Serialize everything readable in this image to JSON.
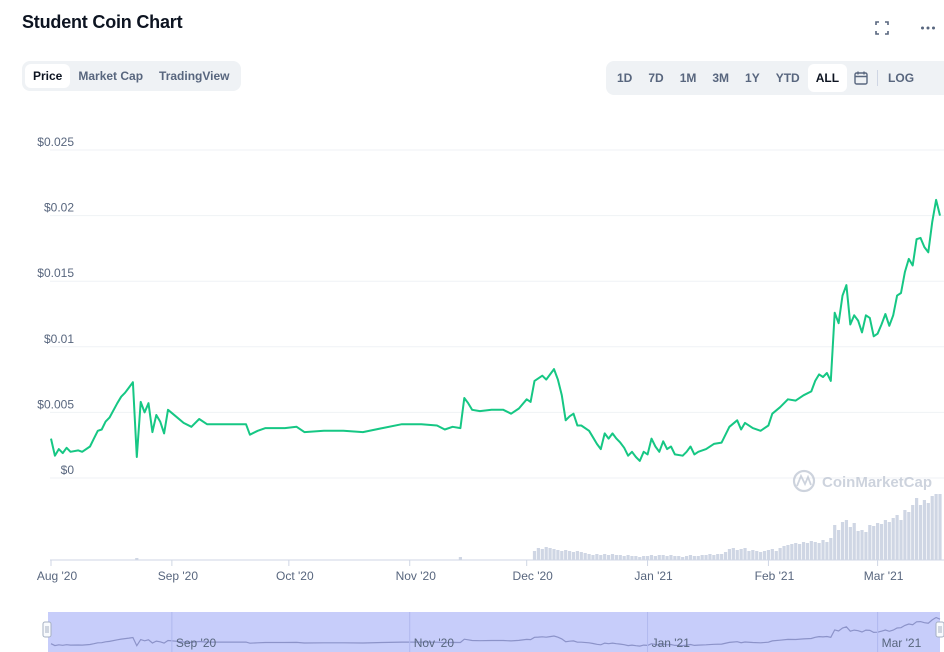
{
  "title": "Student Coin Chart",
  "icons": {
    "fullscreen": "fullscreen-icon",
    "more": "more-icon",
    "calendar": "calendar-icon"
  },
  "tabs": [
    {
      "label": "Price",
      "active": true
    },
    {
      "label": "Market Cap",
      "active": false
    },
    {
      "label": "TradingView",
      "active": false
    }
  ],
  "ranges": [
    {
      "label": "1D",
      "active": false
    },
    {
      "label": "7D",
      "active": false
    },
    {
      "label": "1M",
      "active": false
    },
    {
      "label": "3M",
      "active": false
    },
    {
      "label": "1Y",
      "active": false
    },
    {
      "label": "YTD",
      "active": false
    },
    {
      "label": "ALL",
      "active": true
    }
  ],
  "log_label": "LOG",
  "watermark": "CoinMarketCap",
  "colors": {
    "line": "#16c784",
    "grid": "#eff2f5",
    "volume": "#cfd6e4",
    "navigator": "#c7cdfa",
    "navigator_line": "#8c93c9",
    "axis_text": "#58667e"
  },
  "chart_data": {
    "type": "line",
    "title": "",
    "xlabel": "",
    "ylabel": "",
    "ylim": [
      0,
      0.025
    ],
    "y_ticks": [
      {
        "value": 0,
        "label": "$0"
      },
      {
        "value": 0.005,
        "label": "$0.005"
      },
      {
        "value": 0.01,
        "label": "$0.01"
      },
      {
        "value": 0.015,
        "label": "$0.015"
      },
      {
        "value": 0.02,
        "label": "$0.02"
      },
      {
        "value": 0.025,
        "label": "$0.025"
      }
    ],
    "x_ticks": [
      {
        "date": "2020-08-01",
        "label": "Aug '20"
      },
      {
        "date": "2020-09-01",
        "label": "Sep '20"
      },
      {
        "date": "2020-10-01",
        "label": "Oct '20"
      },
      {
        "date": "2020-11-01",
        "label": "Nov '20"
      },
      {
        "date": "2020-12-01",
        "label": "Dec '20"
      },
      {
        "date": "2021-01-01",
        "label": "Jan '21"
      },
      {
        "date": "2021-02-01",
        "label": "Feb '21"
      },
      {
        "date": "2021-03-01",
        "label": "Mar '21"
      }
    ],
    "navigator_ticks": [
      {
        "date": "2020-09-01",
        "label": "Sep '20"
      },
      {
        "date": "2020-11-01",
        "label": "Nov '20"
      },
      {
        "date": "2021-01-01",
        "label": "Jan '21"
      },
      {
        "date": "2021-03-01",
        "label": "Mar '21"
      }
    ],
    "grid": true,
    "series": [
      {
        "points": [
          [
            "2020-08-01",
            0.003
          ],
          [
            "2020-08-02",
            0.0017
          ],
          [
            "2020-08-03",
            0.0022
          ],
          [
            "2020-08-04",
            0.0019
          ],
          [
            "2020-08-05",
            0.0023
          ],
          [
            "2020-08-06",
            0.002
          ],
          [
            "2020-08-08",
            0.0021
          ],
          [
            "2020-08-09",
            0.002
          ],
          [
            "2020-08-11",
            0.0024
          ],
          [
            "2020-08-12",
            0.003
          ],
          [
            "2020-08-13",
            0.0036
          ],
          [
            "2020-08-14",
            0.0037
          ],
          [
            "2020-08-15",
            0.0043
          ],
          [
            "2020-08-16",
            0.0046
          ],
          [
            "2020-08-18",
            0.0057
          ],
          [
            "2020-08-19",
            0.0062
          ],
          [
            "2020-08-20",
            0.0065
          ],
          [
            "2020-08-21",
            0.0069
          ],
          [
            "2020-08-22",
            0.0073
          ],
          [
            "2020-08-23",
            0.0016
          ],
          [
            "2020-08-24",
            0.0058
          ],
          [
            "2020-08-25",
            0.005
          ],
          [
            "2020-08-26",
            0.0057
          ],
          [
            "2020-08-27",
            0.0035
          ],
          [
            "2020-08-28",
            0.0048
          ],
          [
            "2020-08-29",
            0.0043
          ],
          [
            "2020-08-30",
            0.0034
          ],
          [
            "2020-08-31",
            0.0052
          ],
          [
            "2020-09-02",
            0.0047
          ],
          [
            "2020-09-04",
            0.0042
          ],
          [
            "2020-09-06",
            0.0039
          ],
          [
            "2020-09-08",
            0.0045
          ],
          [
            "2020-09-10",
            0.0041
          ],
          [
            "2020-09-20",
            0.0041
          ],
          [
            "2020-09-21",
            0.0033
          ],
          [
            "2020-09-23",
            0.0036
          ],
          [
            "2020-09-25",
            0.0038
          ],
          [
            "2020-09-30",
            0.0038
          ],
          [
            "2020-10-03",
            0.0039
          ],
          [
            "2020-10-05",
            0.0035
          ],
          [
            "2020-10-10",
            0.0036
          ],
          [
            "2020-10-15",
            0.0036
          ],
          [
            "2020-10-20",
            0.0035
          ],
          [
            "2020-10-25",
            0.0038
          ],
          [
            "2020-10-30",
            0.0041
          ],
          [
            "2020-11-04",
            0.0041
          ],
          [
            "2020-11-08",
            0.004
          ],
          [
            "2020-11-10",
            0.0037
          ],
          [
            "2020-11-12",
            0.0039
          ],
          [
            "2020-11-14",
            0.0038
          ],
          [
            "2020-11-15",
            0.0061
          ],
          [
            "2020-11-16",
            0.0057
          ],
          [
            "2020-11-17",
            0.0052
          ],
          [
            "2020-11-19",
            0.0051
          ],
          [
            "2020-11-22",
            0.0052
          ],
          [
            "2020-11-25",
            0.0052
          ],
          [
            "2020-11-27",
            0.0049
          ],
          [
            "2020-11-29",
            0.0053
          ],
          [
            "2020-12-01",
            0.006
          ],
          [
            "2020-12-02",
            0.0058
          ],
          [
            "2020-12-03",
            0.0074
          ],
          [
            "2020-12-04",
            0.0076
          ],
          [
            "2020-12-05",
            0.0078
          ],
          [
            "2020-12-06",
            0.0075
          ],
          [
            "2020-12-07",
            0.0079
          ],
          [
            "2020-12-08",
            0.0083
          ],
          [
            "2020-12-09",
            0.0075
          ],
          [
            "2020-12-10",
            0.0063
          ],
          [
            "2020-12-11",
            0.0044
          ],
          [
            "2020-12-12",
            0.0047
          ],
          [
            "2020-12-13",
            0.0049
          ],
          [
            "2020-12-14",
            0.004
          ],
          [
            "2020-12-15",
            0.004
          ],
          [
            "2020-12-17",
            0.0036
          ],
          [
            "2020-12-18",
            0.0031
          ],
          [
            "2020-12-19",
            0.0026
          ],
          [
            "2020-12-20",
            0.0022
          ],
          [
            "2020-12-21",
            0.0034
          ],
          [
            "2020-12-22",
            0.003
          ],
          [
            "2020-12-23",
            0.0034
          ],
          [
            "2020-12-24",
            0.003
          ],
          [
            "2020-12-25",
            0.0027
          ],
          [
            "2020-12-26",
            0.0023
          ],
          [
            "2020-12-27",
            0.0017
          ],
          [
            "2020-12-28",
            0.002
          ],
          [
            "2020-12-29",
            0.0016
          ],
          [
            "2020-12-30",
            0.0013
          ],
          [
            "2020-12-31",
            0.002
          ],
          [
            "2021-01-01",
            0.0018
          ],
          [
            "2021-01-02",
            0.003
          ],
          [
            "2021-01-03",
            0.0024
          ],
          [
            "2021-01-04",
            0.002
          ],
          [
            "2021-01-05",
            0.0028
          ],
          [
            "2021-01-06",
            0.0022
          ],
          [
            "2021-01-07",
            0.0024
          ],
          [
            "2021-01-08",
            0.0018
          ],
          [
            "2021-01-10",
            0.0017
          ],
          [
            "2021-01-11",
            0.002
          ],
          [
            "2021-01-12",
            0.0024
          ],
          [
            "2021-01-13",
            0.0018
          ],
          [
            "2021-01-14",
            0.002
          ],
          [
            "2021-01-16",
            0.0022
          ],
          [
            "2021-01-18",
            0.0026
          ],
          [
            "2021-01-20",
            0.0027
          ],
          [
            "2021-01-22",
            0.0039
          ],
          [
            "2021-01-24",
            0.0044
          ],
          [
            "2021-01-25",
            0.0037
          ],
          [
            "2021-01-26",
            0.0042
          ],
          [
            "2021-01-28",
            0.0038
          ],
          [
            "2021-01-30",
            0.0036
          ],
          [
            "2021-02-01",
            0.004
          ],
          [
            "2021-02-02",
            0.0049
          ],
          [
            "2021-02-04",
            0.0054
          ],
          [
            "2021-02-06",
            0.006
          ],
          [
            "2021-02-08",
            0.0059
          ],
          [
            "2021-02-10",
            0.0063
          ],
          [
            "2021-02-12",
            0.0066
          ],
          [
            "2021-02-13",
            0.0074
          ],
          [
            "2021-02-14",
            0.0079
          ],
          [
            "2021-02-15",
            0.0077
          ],
          [
            "2021-02-16",
            0.008
          ],
          [
            "2021-02-17",
            0.0074
          ],
          [
            "2021-02-18",
            0.0126
          ],
          [
            "2021-02-19",
            0.0118
          ],
          [
            "2021-02-20",
            0.0139
          ],
          [
            "2021-02-21",
            0.0147
          ],
          [
            "2021-02-22",
            0.0117
          ],
          [
            "2021-02-23",
            0.0124
          ],
          [
            "2021-02-24",
            0.012
          ],
          [
            "2021-02-25",
            0.0111
          ],
          [
            "2021-02-26",
            0.0124
          ],
          [
            "2021-02-27",
            0.0122
          ],
          [
            "2021-02-28",
            0.0108
          ],
          [
            "2021-03-01",
            0.011
          ],
          [
            "2021-03-02",
            0.0117
          ],
          [
            "2021-03-03",
            0.0125
          ],
          [
            "2021-03-04",
            0.0116
          ],
          [
            "2021-03-05",
            0.0124
          ],
          [
            "2021-03-06",
            0.0139
          ],
          [
            "2021-03-07",
            0.0141
          ],
          [
            "2021-03-08",
            0.0157
          ],
          [
            "2021-03-09",
            0.0167
          ],
          [
            "2021-03-10",
            0.0162
          ],
          [
            "2021-03-11",
            0.0182
          ],
          [
            "2021-03-12",
            0.0183
          ],
          [
            "2021-03-13",
            0.0176
          ],
          [
            "2021-03-14",
            0.0172
          ],
          [
            "2021-03-15",
            0.0195
          ],
          [
            "2021-03-16",
            0.0212
          ],
          [
            "2021-03-17",
            0.02
          ]
        ]
      }
    ],
    "volume": [
      [
        "2020-08-23",
        0.02
      ],
      [
        "2020-11-14",
        0.03
      ],
      [
        "2020-12-03",
        0.09
      ],
      [
        "2020-12-04",
        0.12
      ],
      [
        "2020-12-05",
        0.11
      ],
      [
        "2020-12-06",
        0.13
      ],
      [
        "2020-12-07",
        0.12
      ],
      [
        "2020-12-08",
        0.11
      ],
      [
        "2020-12-09",
        0.1
      ],
      [
        "2020-12-10",
        0.09
      ],
      [
        "2020-12-11",
        0.1
      ],
      [
        "2020-12-12",
        0.09
      ],
      [
        "2020-12-13",
        0.08
      ],
      [
        "2020-12-14",
        0.09
      ],
      [
        "2020-12-15",
        0.08
      ],
      [
        "2020-12-16",
        0.07
      ],
      [
        "2020-12-17",
        0.06
      ],
      [
        "2020-12-18",
        0.05
      ],
      [
        "2020-12-19",
        0.06
      ],
      [
        "2020-12-20",
        0.05
      ],
      [
        "2020-12-21",
        0.06
      ],
      [
        "2020-12-22",
        0.05
      ],
      [
        "2020-12-23",
        0.06
      ],
      [
        "2020-12-24",
        0.05
      ],
      [
        "2020-12-25",
        0.05
      ],
      [
        "2020-12-26",
        0.04
      ],
      [
        "2020-12-27",
        0.05
      ],
      [
        "2020-12-28",
        0.04
      ],
      [
        "2020-12-29",
        0.04
      ],
      [
        "2020-12-30",
        0.03
      ],
      [
        "2020-12-31",
        0.04
      ],
      [
        "2021-01-01",
        0.04
      ],
      [
        "2021-01-02",
        0.05
      ],
      [
        "2021-01-03",
        0.04
      ],
      [
        "2021-01-04",
        0.05
      ],
      [
        "2021-01-05",
        0.05
      ],
      [
        "2021-01-06",
        0.04
      ],
      [
        "2021-01-07",
        0.05
      ],
      [
        "2021-01-08",
        0.04
      ],
      [
        "2021-01-09",
        0.04
      ],
      [
        "2021-01-10",
        0.03
      ],
      [
        "2021-01-11",
        0.04
      ],
      [
        "2021-01-12",
        0.05
      ],
      [
        "2021-01-13",
        0.04
      ],
      [
        "2021-01-14",
        0.04
      ],
      [
        "2021-01-15",
        0.05
      ],
      [
        "2021-01-16",
        0.05
      ],
      [
        "2021-01-17",
        0.06
      ],
      [
        "2021-01-18",
        0.05
      ],
      [
        "2021-01-19",
        0.06
      ],
      [
        "2021-01-20",
        0.06
      ],
      [
        "2021-01-21",
        0.08
      ],
      [
        "2021-01-22",
        0.11
      ],
      [
        "2021-01-23",
        0.12
      ],
      [
        "2021-01-24",
        0.1
      ],
      [
        "2021-01-25",
        0.11
      ],
      [
        "2021-01-26",
        0.12
      ],
      [
        "2021-01-27",
        0.09
      ],
      [
        "2021-01-28",
        0.1
      ],
      [
        "2021-01-29",
        0.09
      ],
      [
        "2021-01-30",
        0.08
      ],
      [
        "2021-01-31",
        0.09
      ],
      [
        "2021-02-01",
        0.1
      ],
      [
        "2021-02-02",
        0.11
      ],
      [
        "2021-02-03",
        0.09
      ],
      [
        "2021-02-04",
        0.12
      ],
      [
        "2021-02-05",
        0.14
      ],
      [
        "2021-02-06",
        0.15
      ],
      [
        "2021-02-07",
        0.16
      ],
      [
        "2021-02-08",
        0.17
      ],
      [
        "2021-02-09",
        0.16
      ],
      [
        "2021-02-10",
        0.18
      ],
      [
        "2021-02-11",
        0.17
      ],
      [
        "2021-02-12",
        0.19
      ],
      [
        "2021-02-13",
        0.18
      ],
      [
        "2021-02-14",
        0.17
      ],
      [
        "2021-02-15",
        0.2
      ],
      [
        "2021-02-16",
        0.18
      ],
      [
        "2021-02-17",
        0.22
      ],
      [
        "2021-02-18",
        0.35
      ],
      [
        "2021-02-19",
        0.3
      ],
      [
        "2021-02-20",
        0.38
      ],
      [
        "2021-02-21",
        0.4
      ],
      [
        "2021-02-22",
        0.33
      ],
      [
        "2021-02-23",
        0.37
      ],
      [
        "2021-02-24",
        0.29
      ],
      [
        "2021-02-25",
        0.3
      ],
      [
        "2021-02-26",
        0.28
      ],
      [
        "2021-02-27",
        0.35
      ],
      [
        "2021-02-28",
        0.34
      ],
      [
        "2021-03-01",
        0.37
      ],
      [
        "2021-03-02",
        0.36
      ],
      [
        "2021-03-03",
        0.4
      ],
      [
        "2021-03-04",
        0.38
      ],
      [
        "2021-03-05",
        0.42
      ],
      [
        "2021-03-06",
        0.45
      ],
      [
        "2021-03-07",
        0.4
      ],
      [
        "2021-03-08",
        0.5
      ],
      [
        "2021-03-09",
        0.48
      ],
      [
        "2021-03-10",
        0.55
      ],
      [
        "2021-03-11",
        0.62
      ],
      [
        "2021-03-12",
        0.55
      ],
      [
        "2021-03-13",
        0.6
      ],
      [
        "2021-03-14",
        0.57
      ],
      [
        "2021-03-15",
        0.64
      ],
      [
        "2021-03-16",
        0.66
      ],
      [
        "2021-03-17",
        0.66
      ]
    ]
  }
}
